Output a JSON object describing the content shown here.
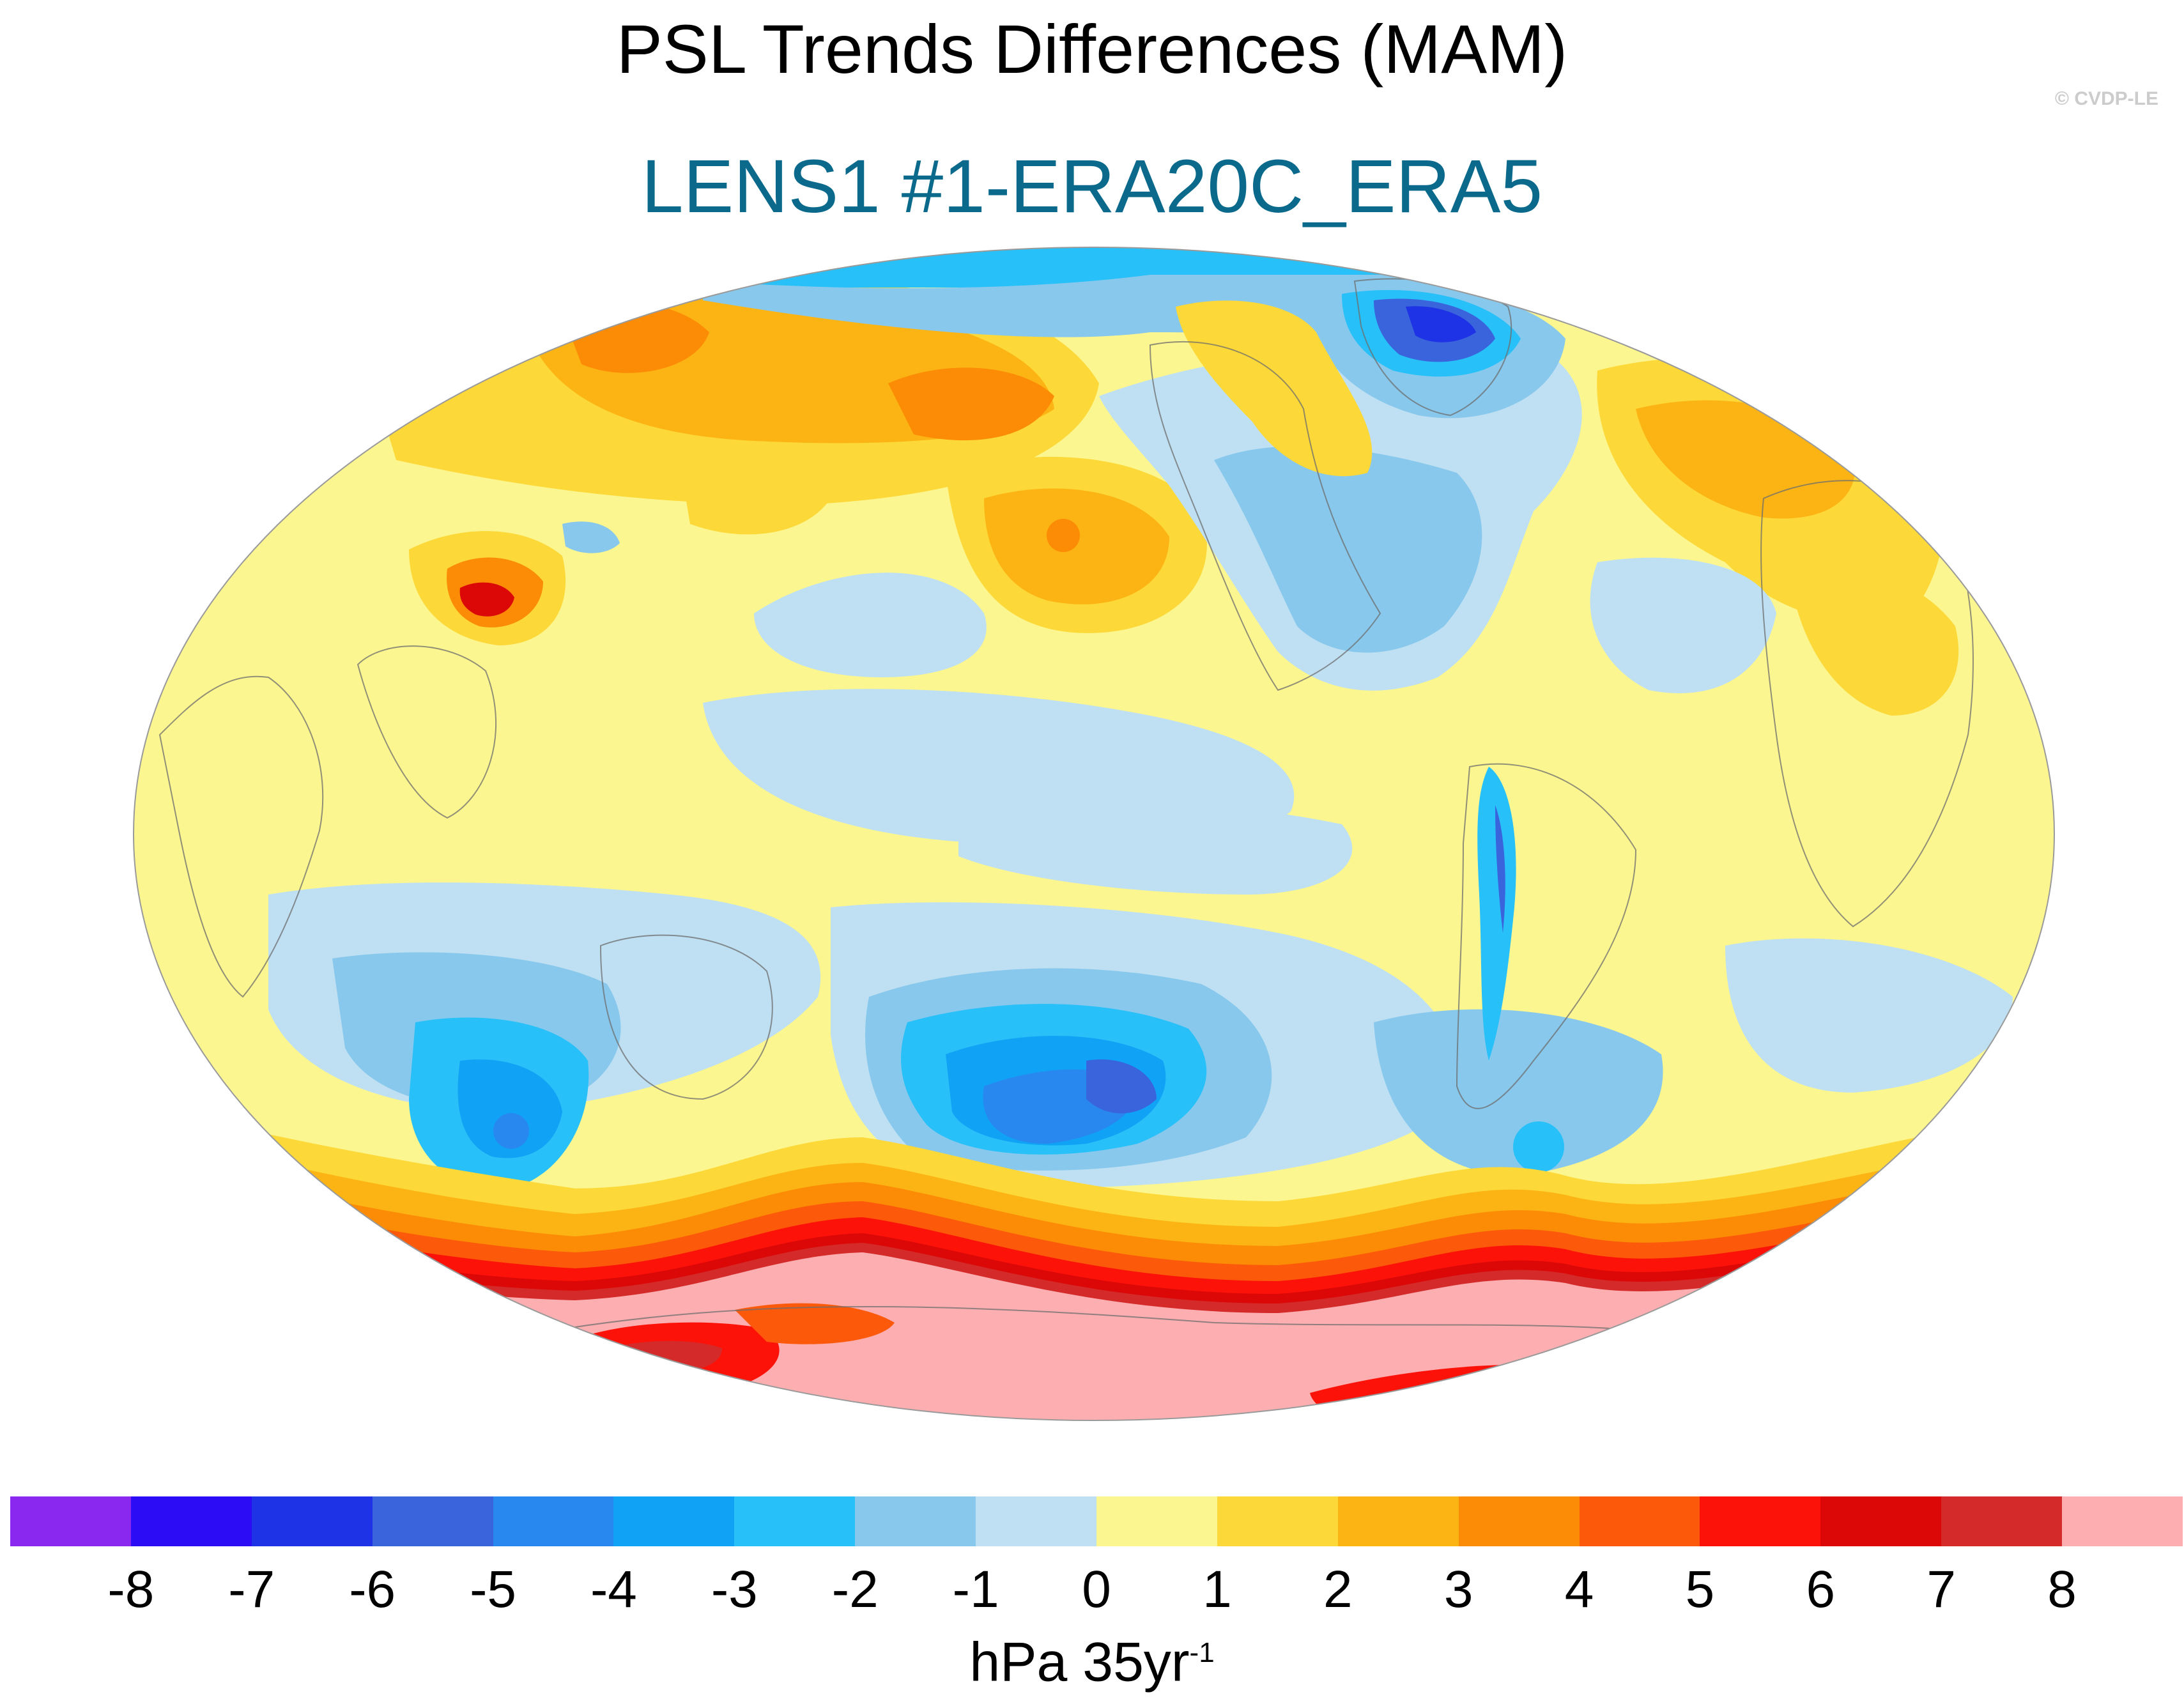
{
  "title": "PSL Trends Differences (MAM)",
  "subtitle": "LENS1 #1-ERA20C_ERA5",
  "credit": "© CVDP-LE",
  "colorbar": {
    "labels": [
      "-8",
      "-7",
      "-6",
      "-5",
      "-4",
      "-3",
      "-2",
      "-1",
      "0",
      "1",
      "2",
      "3",
      "4",
      "5",
      "6",
      "7",
      "8"
    ],
    "colors": [
      "#8a28f0",
      "#2b0cf5",
      "#1e32e6",
      "#3a64dc",
      "#2888f0",
      "#10a2f5",
      "#28c0f8",
      "#88c8ec",
      "#bee0f2",
      "#fcf690",
      "#fcd838",
      "#fcb414",
      "#fc8c06",
      "#fc5a0a",
      "#fc1208",
      "#dc0808",
      "#d42a2a",
      "#fcaeb0"
    ],
    "units_main": "hPa 35yr",
    "units_exponent": "-1"
  },
  "chart_data": {
    "type": "heatmap",
    "variable": "PSL trend difference",
    "season": "MAM",
    "units": "hPa 35yr-1",
    "levels": [
      -8,
      -7,
      -6,
      -5,
      -4,
      -3,
      -2,
      -1,
      0,
      1,
      2,
      3,
      4,
      5,
      6,
      7,
      8
    ],
    "projection": "Robinson-like global (Pacific centred)"
  }
}
